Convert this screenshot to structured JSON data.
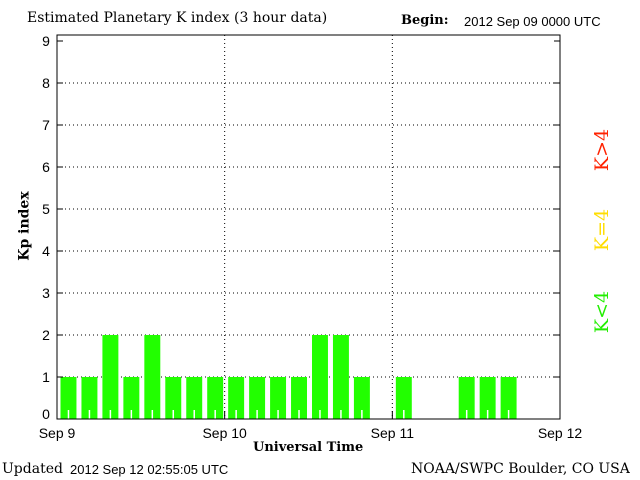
{
  "chart_data": {
    "type": "bar",
    "title": "Estimated Planetary K index (3 hour data)",
    "begin_label": "Begin:",
    "begin_value": "2012 Sep 09 0000 UTC",
    "ylabel": "Kp index",
    "xlabel": "Universal Time",
    "ylim": [
      0,
      9
    ],
    "yticks": [
      "0",
      "1",
      "2",
      "3",
      "4",
      "5",
      "6",
      "7",
      "8",
      "9"
    ],
    "xticks": [
      "Sep 9",
      "Sep 10",
      "Sep 11",
      "Sep 12"
    ],
    "interval_hours": 3,
    "values": [
      1,
      1,
      2,
      1,
      2,
      1,
      1,
      1,
      1,
      1,
      1,
      1,
      2,
      2,
      1,
      null,
      1,
      null,
      null,
      1,
      1,
      1,
      null,
      null
    ],
    "bar_color": "#22ff00",
    "legend": [
      {
        "label": "K<4",
        "color": "#22ee00"
      },
      {
        "label": "K=4",
        "color": "#ffdd00"
      },
      {
        "label": "K>4",
        "color": "#ff2200"
      }
    ],
    "grid": true
  },
  "footer": {
    "updated_label": "Updated",
    "updated_value": "2012 Sep 12 02:55:05 UTC",
    "source": "NOAA/SWPC Boulder, CO USA"
  }
}
